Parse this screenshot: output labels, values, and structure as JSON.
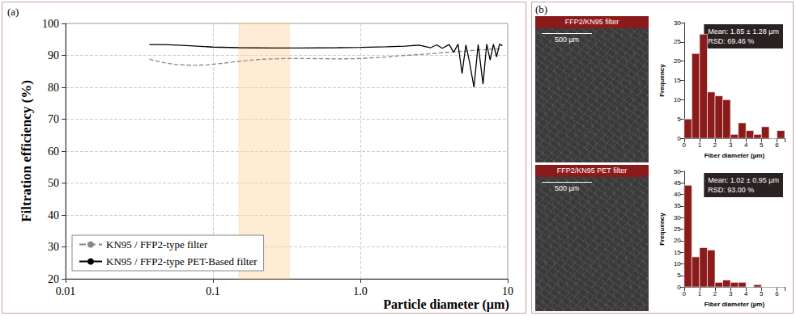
{
  "chart_data": [
    {
      "type": "line",
      "panel": "(a)",
      "xlabel": "Particle diameter (µm)",
      "ylabel": "Filtration efficiency (%)",
      "log": "x",
      "grid": true,
      "legend": "lower left",
      "xlim": [
        0.01,
        10
      ],
      "xticks": [
        0.01,
        0.1,
        {
          "value": 1,
          "label": "1.0"
        },
        10
      ],
      "ylim": [
        20,
        100
      ],
      "yticks": [
        20,
        30,
        40,
        50,
        60,
        70,
        80,
        90,
        100
      ],
      "band": {
        "x": [
          0.15,
          0.33
        ]
      },
      "series": [
        {
          "name": "KN95 / FFP2-type filter",
          "color": "#888888",
          "line_style": "dashed",
          "x": [
            0.037,
            0.045,
            0.055,
            0.07,
            0.09,
            0.12,
            0.16,
            0.22,
            0.3,
            0.45,
            0.7,
            1.0,
            1.5,
            2.0,
            3.0,
            4.0,
            5.0,
            6.0,
            7.0,
            8.0,
            9.0
          ],
          "values": [
            88.8,
            87.8,
            87.2,
            86.9,
            87.0,
            87.6,
            88.3,
            88.8,
            89.0,
            89.0,
            88.9,
            89.0,
            89.5,
            90.0,
            90.5,
            91.0,
            91.3,
            91.6,
            91.8,
            92.0,
            92.0
          ]
        },
        {
          "name": "KN95 / FFP2-type PET-Based filter",
          "color": "#000000",
          "line_style": "solid",
          "x": [
            0.037,
            0.05,
            0.07,
            0.1,
            0.15,
            0.25,
            0.4,
            0.7,
            1.0,
            1.5,
            2.0,
            2.5,
            3.0,
            3.3,
            3.6,
            4.0,
            4.3,
            4.6,
            4.9,
            5.2,
            5.5,
            5.9,
            6.3,
            6.8,
            7.2,
            7.6,
            8.0,
            8.4,
            8.8,
            9.2
          ],
          "values": [
            93.4,
            93.3,
            93.0,
            92.6,
            92.4,
            92.3,
            92.3,
            92.4,
            92.5,
            92.7,
            92.9,
            93.2,
            92.4,
            93.3,
            92.2,
            93.4,
            91.0,
            93.5,
            84.3,
            93.3,
            88.0,
            80.0,
            93.4,
            81.0,
            93.5,
            88.5,
            93.5,
            89.5,
            93.5,
            93.0
          ]
        }
      ]
    },
    {
      "type": "histogram",
      "xlabel": "Fiber diameter (µm)",
      "ylabel": "Frequency",
      "color": "#8b1a1a",
      "annotations": [
        "Mean: 1.85 ± 1.28 µm",
        "RSD: 69.46 %"
      ],
      "bins": [
        0,
        0.5,
        1,
        1.5,
        2,
        2.5,
        3,
        3.5,
        4,
        4.5,
        5,
        5.5,
        6,
        6.5
      ],
      "counts": [
        5,
        22,
        27,
        12,
        11,
        10,
        1,
        4,
        2,
        1,
        3,
        0,
        2
      ],
      "xlim": [
        0,
        6.5
      ],
      "xticks": [
        0,
        1,
        2,
        3,
        4,
        5,
        6
      ],
      "ylim": [
        0,
        30
      ],
      "yticks": [
        0,
        5,
        10,
        15,
        20,
        25,
        30
      ]
    },
    {
      "type": "histogram",
      "xlabel": "Fiber diameter (µm)",
      "ylabel": "Frequency",
      "color": "#8b1a1a",
      "annotations": [
        "Mean: 1.02 ± 0.95 µm",
        "RSD: 93.00 %"
      ],
      "bins": [
        0,
        0.5,
        1,
        1.5,
        2,
        2.5,
        3,
        3.5,
        4,
        4.5,
        5,
        5.5,
        6,
        6.5
      ],
      "counts": [
        44,
        13,
        17,
        16,
        2,
        3,
        2,
        2,
        0,
        1,
        0,
        0,
        0
      ],
      "xlim": [
        0,
        6.5
      ],
      "xticks": [
        0,
        1,
        2,
        3,
        4,
        5,
        6
      ],
      "ylim": [
        0,
        50
      ],
      "yticks": [
        0,
        5,
        10,
        15,
        20,
        25,
        30,
        35,
        40,
        45,
        50
      ]
    }
  ],
  "images": {
    "panel": "(b)",
    "items": [
      {
        "title": "FFP2/KN95 filter",
        "scale_bar": "500 µm"
      },
      {
        "title": "FFP2/KN95 PET filter",
        "scale_bar": "500 µm"
      }
    ]
  }
}
